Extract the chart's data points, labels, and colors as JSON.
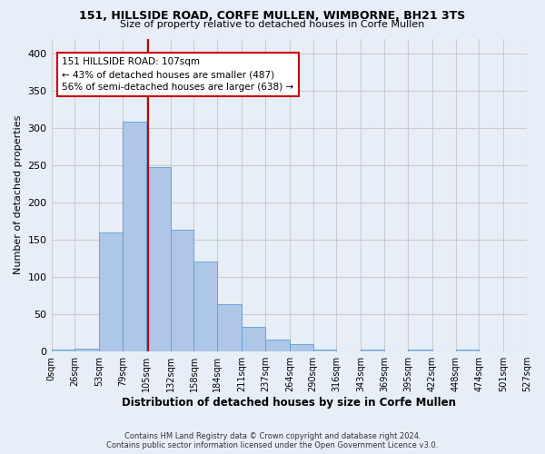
{
  "title1": "151, HILLSIDE ROAD, CORFE MULLEN, WIMBORNE, BH21 3TS",
  "title2": "Size of property relative to detached houses in Corfe Mullen",
  "xlabel": "Distribution of detached houses by size in Corfe Mullen",
  "ylabel": "Number of detached properties",
  "footer1": "Contains HM Land Registry data © Crown copyright and database right 2024.",
  "footer2": "Contains public sector information licensed under the Open Government Licence v3.0.",
  "bar_edges": [
    0,
    26,
    53,
    79,
    105,
    132,
    158,
    184,
    211,
    237,
    264,
    290,
    316,
    343,
    369,
    395,
    422,
    448,
    474,
    501,
    527
  ],
  "bar_heights": [
    2,
    4,
    160,
    308,
    248,
    163,
    121,
    64,
    33,
    16,
    10,
    3,
    0,
    3,
    0,
    3,
    0,
    3,
    0,
    0
  ],
  "bar_color": "#aec6e8",
  "bar_edge_color": "#5a9fd4",
  "property_size": 107,
  "vline_color": "#cc0000",
  "annotation_text": "151 HILLSIDE ROAD: 107sqm\n← 43% of detached houses are smaller (487)\n56% of semi-detached houses are larger (638) →",
  "annotation_box_color": "#ffffff",
  "annotation_box_edge": "#cc0000",
  "ylim": [
    0,
    420
  ],
  "grid_color": "#cccccc",
  "background_color": "#e8eef8",
  "tick_labels": [
    "0sqm",
    "26sqm",
    "53sqm",
    "79sqm",
    "105sqm",
    "132sqm",
    "158sqm",
    "184sqm",
    "211sqm",
    "237sqm",
    "264sqm",
    "290sqm",
    "316sqm",
    "343sqm",
    "369sqm",
    "395sqm",
    "422sqm",
    "448sqm",
    "474sqm",
    "501sqm",
    "527sqm"
  ]
}
